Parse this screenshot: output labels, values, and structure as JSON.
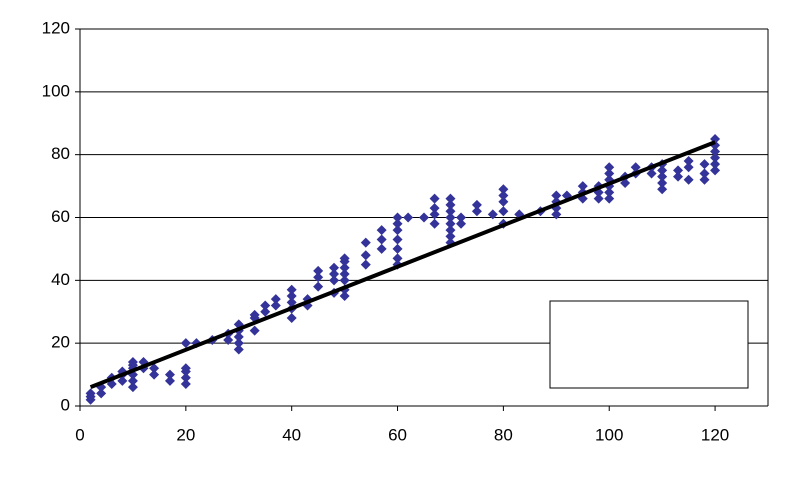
{
  "chart_data": {
    "type": "scatter",
    "xlim": [
      0,
      130
    ],
    "xticks": [
      0,
      20,
      40,
      60,
      80,
      100,
      120
    ],
    "ylim": [
      0,
      120
    ],
    "yticks": [
      0,
      20,
      40,
      60,
      80,
      100,
      120
    ],
    "grid": true,
    "series": [
      {
        "color": "#333399",
        "x": [
          2,
          2,
          2,
          4,
          4,
          6,
          6,
          8,
          8,
          8,
          10,
          10,
          10,
          10,
          10,
          10,
          12,
          12,
          14,
          14,
          17,
          17,
          20,
          20,
          20,
          20,
          20,
          22,
          25,
          28,
          28,
          30,
          30,
          30,
          30,
          30,
          33,
          33,
          33,
          35,
          35,
          37,
          37,
          40,
          40,
          40,
          40,
          40,
          43,
          43,
          45,
          45,
          45,
          48,
          48,
          48,
          48,
          50,
          50,
          50,
          50,
          50,
          50,
          50,
          54,
          54,
          54,
          57,
          57,
          57,
          60,
          60,
          60,
          60,
          60,
          60,
          60,
          62,
          65,
          67,
          67,
          67,
          67,
          70,
          70,
          70,
          70,
          70,
          70,
          70,
          70,
          72,
          72,
          75,
          75,
          78,
          80,
          80,
          80,
          80,
          80,
          83,
          87,
          90,
          90,
          90,
          90,
          92,
          95,
          95,
          95,
          98,
          98,
          98,
          100,
          100,
          100,
          100,
          100,
          100,
          103,
          103,
          105,
          105,
          108,
          108,
          110,
          110,
          110,
          110,
          110,
          113,
          113,
          115,
          115,
          115,
          118,
          118,
          118,
          120,
          120,
          120,
          120,
          120,
          120
        ],
        "values": [
          2,
          3,
          4,
          4,
          6,
          7,
          9,
          8,
          10,
          11,
          6,
          8,
          10,
          12,
          13,
          14,
          12,
          14,
          10,
          12,
          8,
          10,
          7,
          9,
          11,
          12,
          20,
          20,
          21,
          21,
          23,
          18,
          20,
          22,
          24,
          26,
          24,
          28,
          29,
          30,
          32,
          32,
          34,
          28,
          31,
          33,
          35,
          37,
          32,
          34,
          38,
          41,
          43,
          36,
          40,
          42,
          44,
          35,
          37,
          40,
          42,
          44,
          46,
          47,
          45,
          48,
          52,
          50,
          53,
          56,
          45,
          47,
          50,
          53,
          56,
          58,
          60,
          60,
          60,
          58,
          61,
          63,
          66,
          52,
          54,
          56,
          58,
          60,
          62,
          64,
          66,
          58,
          60,
          62,
          64,
          61,
          58,
          62,
          65,
          67,
          69,
          61,
          62,
          61,
          63,
          65,
          67,
          67,
          66,
          68,
          70,
          66,
          68,
          70,
          66,
          68,
          70,
          72,
          74,
          76,
          71,
          73,
          74,
          76,
          74,
          76,
          69,
          71,
          73,
          75,
          77,
          73,
          75,
          72,
          76,
          78,
          72,
          74,
          77,
          75,
          77,
          79,
          81,
          83,
          85
        ]
      }
    ],
    "trendline": {
      "color": "#000000",
      "x": [
        2,
        120
      ],
      "values": [
        6,
        84
      ]
    }
  }
}
